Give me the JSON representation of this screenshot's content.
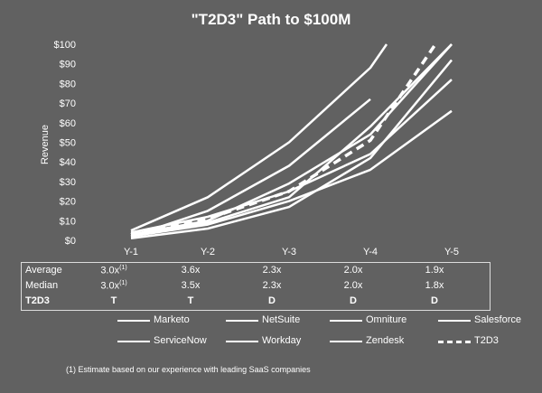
{
  "chart_data": {
    "type": "line",
    "title": "\"T2D3\" Path to $100M",
    "xlabel": "",
    "ylabel": "Revenue",
    "categories": [
      "Y-1",
      "Y-2",
      "Y-3",
      "Y-4",
      "Y-5"
    ],
    "y_ticks": [
      "$0",
      "$10",
      "$20",
      "$30",
      "$40",
      "$50",
      "$60",
      "$70",
      "$80",
      "$90",
      "$100"
    ],
    "ylim": [
      0,
      100
    ],
    "grid": false,
    "legend_position": "bottom",
    "series": [
      {
        "name": "Marketo",
        "style": "solid",
        "x": [
          "Y-1",
          "Y-2",
          "Y-3",
          "Y-4",
          "Y-5"
        ],
        "values": [
          4,
          12,
          25,
          44,
          82
        ]
      },
      {
        "name": "NetSuite",
        "style": "solid",
        "x": [
          "Y-1",
          "Y-2",
          "Y-3",
          "Y-4",
          "Y-4.2"
        ],
        "values": [
          5,
          22,
          50,
          88,
          100
        ]
      },
      {
        "name": "Omniture",
        "style": "solid",
        "x": [
          "Y-1",
          "Y-2",
          "Y-3",
          "Y-4",
          "Y-5"
        ],
        "values": [
          2,
          8,
          20,
          36,
          66
        ]
      },
      {
        "name": "Salesforce",
        "style": "solid",
        "x": [
          "Y-1",
          "Y-2",
          "Y-3",
          "Y-4",
          "Y-5"
        ],
        "values": [
          3,
          10,
          29,
          54,
          100
        ]
      },
      {
        "name": "ServiceNow",
        "style": "solid",
        "x": [
          "Y-1",
          "Y-2",
          "Y-3",
          "Y-4"
        ],
        "values": [
          2,
          15,
          38,
          72
        ]
      },
      {
        "name": "Workday",
        "style": "solid",
        "x": [
          "Y-1",
          "Y-2",
          "Y-3",
          "Y-4",
          "Y-5"
        ],
        "values": [
          1,
          6,
          17,
          42,
          92
        ]
      },
      {
        "name": "Zendesk",
        "style": "solid",
        "x": [
          "Y-1",
          "Y-2",
          "Y-3",
          "Y-4",
          "Y-5"
        ],
        "values": [
          3,
          9,
          22,
          58,
          100
        ]
      },
      {
        "name": "T2D3",
        "style": "dashed",
        "x": [
          "Y-1",
          "Y-2",
          "Y-3",
          "Y-4",
          "Y-4.8"
        ],
        "values": [
          3,
          11,
          25,
          51,
          100
        ]
      }
    ]
  },
  "stats_table": {
    "rows": [
      {
        "label": "Average",
        "bold": false,
        "cells": [
          {
            "text": "3.0x",
            "sup": "(1)"
          },
          {
            "text": "3.6x",
            "sup": ""
          },
          {
            "text": "2.3x",
            "sup": ""
          },
          {
            "text": "2.0x",
            "sup": ""
          },
          {
            "text": "1.9x",
            "sup": ""
          }
        ]
      },
      {
        "label": "Median",
        "bold": false,
        "cells": [
          {
            "text": "3.0x",
            "sup": "(1)"
          },
          {
            "text": "3.5x",
            "sup": ""
          },
          {
            "text": "2.3x",
            "sup": ""
          },
          {
            "text": "2.0x",
            "sup": ""
          },
          {
            "text": "1.8x",
            "sup": ""
          }
        ]
      },
      {
        "label": "T2D3",
        "bold": true,
        "cells": [
          {
            "text": "T",
            "sup": ""
          },
          {
            "text": "T",
            "sup": ""
          },
          {
            "text": "D",
            "sup": ""
          },
          {
            "text": "D",
            "sup": ""
          },
          {
            "text": "D",
            "sup": ""
          }
        ]
      }
    ]
  },
  "footnote": "(1)  Estimate based on our experience with leading SaaS companies",
  "colors": {
    "background": "#616161",
    "line": "#ffffff",
    "border": "#dcdcdc"
  }
}
